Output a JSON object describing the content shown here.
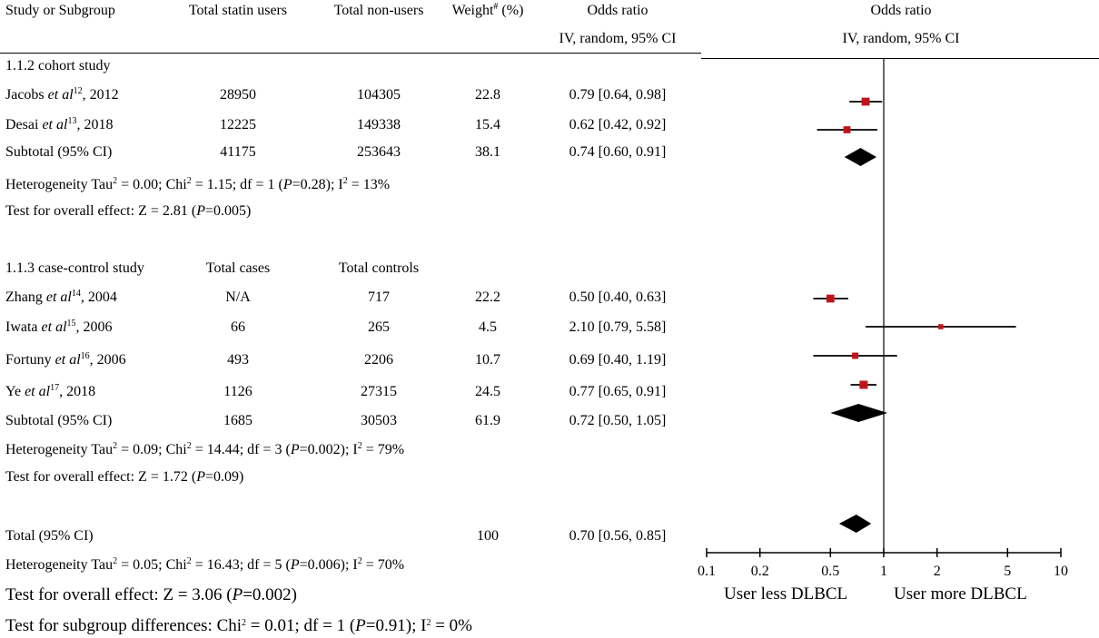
{
  "header": {
    "col_study": "Study or Subgroup",
    "col_statin": "Total statin users",
    "col_nonusers": "Total non-users",
    "col_weight": "Weight",
    "col_weight_sup": "#",
    "col_weight_unit": " (%)",
    "col_or": "Odds ratio",
    "col_or_method": "IV, random, 95% CI",
    "plot_title": "Odds ratio",
    "plot_method": "IV, random, 95% CI"
  },
  "cohort": {
    "label": "1.1.2 cohort study",
    "rows": [
      {
        "author": "Jacobs ",
        "etal": "et al",
        "ref": "12",
        "year": ", 2012",
        "n1": "28950",
        "n2": "104305",
        "weight": "22.8",
        "ci": "0.79 [0.64, 0.98]"
      },
      {
        "author": "Desai ",
        "etal": "et al",
        "ref": "13",
        "year": ", 2018",
        "n1": "12225",
        "n2": "149338",
        "weight": "15.4",
        "ci": "0.62 [0.42, 0.92]"
      }
    ],
    "subtotal": {
      "label": "Subtotal (95% CI)",
      "n1": "41175",
      "n2": "253643",
      "weight": "38.1",
      "ci": "0.74 [0.60, 0.91]"
    },
    "het": {
      "a": "Heterogeneity Tau",
      "b": " = 0.00; Chi",
      "c": " = 1.15; df = 1 (",
      "p": "P",
      "d": "=0.28); I",
      "e": " = 13%"
    },
    "test": {
      "a": "Test for overall effect: Z = 2.81 (",
      "p": "P",
      "b": "=0.005)"
    }
  },
  "casecontrol": {
    "label": "1.1.3 case-control study",
    "col_cases": "Total cases",
    "col_controls": "Total controls",
    "rows": [
      {
        "author": "Zhang ",
        "etal": "et al",
        "ref": "14",
        "year": ", 2004",
        "n1": "N/A",
        "n2": "717",
        "weight": "22.2",
        "ci": "0.50 [0.40, 0.63]"
      },
      {
        "author": "Iwata ",
        "etal": "et al",
        "ref": "15",
        "year": ", 2006",
        "n1": "66",
        "n2": "265",
        "weight": "4.5",
        "ci": "2.10 [0.79, 5.58]"
      },
      {
        "author": "Fortuny ",
        "etal": "et al",
        "ref": "16",
        "year": ", 2006",
        "n1": "493",
        "n2": "2206",
        "weight": "10.7",
        "ci": "0.69 [0.40, 1.19]"
      },
      {
        "author": "Ye ",
        "etal": "et al",
        "ref": "17",
        "year": ", 2018",
        "n1": "1126",
        "n2": "27315",
        "weight": "24.5",
        "ci": "0.77 [0.65, 0.91]"
      }
    ],
    "subtotal": {
      "label": "Subtotal (95% CI)",
      "n1": "1685",
      "n2": "30503",
      "weight": "61.9",
      "ci": "0.72 [0.50, 1.05]"
    },
    "het": {
      "a": "Heterogeneity Tau",
      "b": " = 0.09; Chi",
      "c": " = 14.44; df = 3 (",
      "p": "P",
      "d": "=0.002); I",
      "e": " = 79%"
    },
    "test": {
      "a": "Test for overall effect: Z = 1.72 (",
      "p": "P",
      "b": "=0.09)"
    }
  },
  "total": {
    "label": "Total (95% CI)",
    "weight": "100",
    "ci": "0.70 [0.56, 0.85]",
    "het": {
      "a": "Heterogeneity Tau",
      "b": " = 0.05; Chi",
      "c": " = 16.43; df = 5 (",
      "p": "P",
      "d": "=0.006); I",
      "e": " = 70%"
    },
    "test": {
      "a": "Test for overall effect: Z = 3.06 (",
      "p": "P",
      "b": "=0.002)"
    },
    "subgroup": {
      "a": "Test for subgroup differences: Chi",
      "b": " = 0.01; df = 1 (",
      "p": "P",
      "c": "=0.91); I",
      "d": " = 0%"
    }
  },
  "sup2": "2",
  "chart_data": {
    "type": "forest",
    "xscale": "log",
    "xlim": [
      0.1,
      10
    ],
    "ticks": [
      0.1,
      0.2,
      0.5,
      1,
      2,
      5,
      10
    ],
    "tick_labels": [
      "0.1",
      "0.2",
      "0.5",
      "1",
      "2",
      "5",
      "10"
    ],
    "left_label": "User less DLBCL",
    "right_label": "User more DLBCL",
    "studies": [
      {
        "name": "Jacobs 2012",
        "or": 0.79,
        "lo": 0.64,
        "hi": 0.98,
        "weight": 22.8
      },
      {
        "name": "Desai 2018",
        "or": 0.62,
        "lo": 0.42,
        "hi": 0.92,
        "weight": 15.4
      },
      {
        "name": "Zhang 2004",
        "or": 0.5,
        "lo": 0.4,
        "hi": 0.63,
        "weight": 22.2
      },
      {
        "name": "Iwata 2006",
        "or": 2.1,
        "lo": 0.79,
        "hi": 5.58,
        "weight": 4.5
      },
      {
        "name": "Fortuny 2006",
        "or": 0.69,
        "lo": 0.4,
        "hi": 1.19,
        "weight": 10.7
      },
      {
        "name": "Ye 2018",
        "or": 0.77,
        "lo": 0.65,
        "hi": 0.91,
        "weight": 24.5
      }
    ],
    "summaries": [
      {
        "name": "Subtotal cohort",
        "or": 0.74,
        "lo": 0.6,
        "hi": 0.91
      },
      {
        "name": "Subtotal case-control",
        "or": 0.72,
        "lo": 0.5,
        "hi": 1.05
      },
      {
        "name": "Total",
        "or": 0.7,
        "lo": 0.56,
        "hi": 0.85
      }
    ],
    "colors": {
      "square": "#c0141c",
      "line": "#000000",
      "diamond": "#000000"
    }
  }
}
